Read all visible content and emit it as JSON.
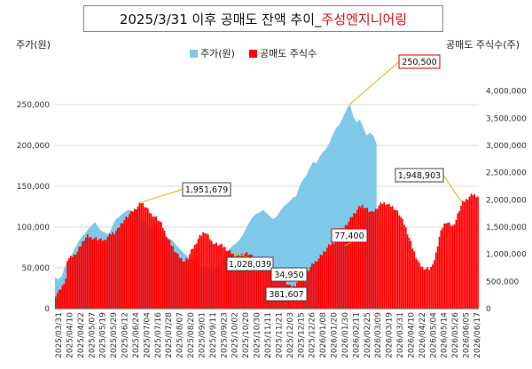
{
  "title": {
    "main": "2025/3/31 이후 공매도 잔액 추이_",
    "accent": "주성엔지니어링"
  },
  "chart_data": {
    "type": "bar+area",
    "ylabel_left": "주가(원)",
    "ylabel_right": "공매도 주식수(주)",
    "ylim_left": [
      0,
      300000
    ],
    "ylim_right": [
      0,
      4500000
    ],
    "yticks_left": [
      "0",
      "50,000",
      "100,000",
      "150,000",
      "200,000",
      "250,000"
    ],
    "yticks_right": [
      "0",
      "500,000",
      "1,000,000",
      "1,500,000",
      "2,000,000",
      "2,500,000",
      "3,000,000",
      "3,500,000",
      "4,000,000"
    ],
    "x_ticks": [
      "2025/03/31",
      "2025/04/10",
      "2025/04/22",
      "2025/05/07",
      "2025/05/19",
      "2025/05/29",
      "2025/06/12",
      "2025/06/24",
      "2025/07/04",
      "2025/07/16",
      "2025/07/28",
      "2025/08/07",
      "2025/08/20",
      "2025/09/01",
      "2025/09/11",
      "2025/09/23",
      "2025/10/02",
      "2025/10/20",
      "2025/10/30",
      "2025/11/11",
      "2025/11/21",
      "2025/12/03",
      "2025/12/15",
      "2025/12/26",
      "2026/01/08",
      "2026/01/20",
      "2026/01/30",
      "2026/02/11",
      "2026/02/25",
      "2026/03/09",
      "2026/03/19",
      "2026/03/31",
      "2026/04/10",
      "2026/04/22",
      "2026/05/04",
      "2026/05/14",
      "2026/05/26",
      "2026/06/05",
      "2026/06/17"
    ],
    "legend": [
      {
        "name": "주가(원)",
        "color": "#7ec8e8"
      },
      {
        "name": "공매도 주식수",
        "color": "#ff0000"
      }
    ],
    "series": [
      {
        "name": "주가(원)",
        "color": "#7ec8e8",
        "axis": "left",
        "points": [
          [
            0,
            38000
          ],
          [
            4,
            36000
          ],
          [
            8,
            40000
          ],
          [
            12,
            52000
          ],
          [
            16,
            60000
          ],
          [
            20,
            66000
          ],
          [
            24,
            74000
          ],
          [
            28,
            82000
          ],
          [
            32,
            88000
          ],
          [
            36,
            92000
          ],
          [
            40,
            98000
          ],
          [
            44,
            102000
          ],
          [
            48,
            106000
          ],
          [
            52,
            99000
          ],
          [
            56,
            95000
          ],
          [
            60,
            93000
          ],
          [
            64,
            90000
          ],
          [
            68,
            100000
          ],
          [
            72,
            109000
          ],
          [
            76,
            112000
          ],
          [
            80,
            116000
          ],
          [
            84,
            119000
          ],
          [
            88,
            121000
          ],
          [
            92,
            120000
          ],
          [
            96,
            118000
          ],
          [
            100,
            113000
          ],
          [
            104,
            109000
          ],
          [
            108,
            106000
          ],
          [
            112,
            102000
          ],
          [
            116,
            98000
          ],
          [
            120,
            99000
          ],
          [
            124,
            96000
          ],
          [
            128,
            92000
          ],
          [
            132,
            89000
          ],
          [
            136,
            86000
          ],
          [
            140,
            84000
          ],
          [
            144,
            79000
          ],
          [
            148,
            74000
          ],
          [
            152,
            70000
          ],
          [
            156,
            66000
          ],
          [
            160,
            63000
          ],
          [
            164,
            60000
          ],
          [
            168,
            57000
          ],
          [
            172,
            55000
          ],
          [
            176,
            52000
          ],
          [
            180,
            50000
          ],
          [
            184,
            48000
          ],
          [
            188,
            46000
          ],
          [
            192,
            50000
          ],
          [
            196,
            54000
          ],
          [
            200,
            61000
          ],
          [
            204,
            67000
          ],
          [
            208,
            73000
          ],
          [
            212,
            77000
          ],
          [
            216,
            80000
          ],
          [
            220,
            84000
          ],
          [
            224,
            90000
          ],
          [
            228,
            98000
          ],
          [
            232,
            106000
          ],
          [
            236,
            112000
          ],
          [
            240,
            116000
          ],
          [
            244,
            118000
          ],
          [
            248,
            121000
          ],
          [
            252,
            118000
          ],
          [
            256,
            114000
          ],
          [
            260,
            110000
          ],
          [
            264,
            112000
          ],
          [
            268,
            118000
          ],
          [
            272,
            124000
          ],
          [
            276,
            128000
          ],
          [
            280,
            131000
          ],
          [
            284,
            136000
          ],
          [
            288,
            138000
          ],
          [
            292,
            150000
          ],
          [
            296,
            158000
          ],
          [
            300,
            163000
          ],
          [
            304,
            172000
          ],
          [
            308,
            180000
          ],
          [
            312,
            178000
          ],
          [
            316,
            186000
          ],
          [
            320,
            192000
          ],
          [
            324,
            196000
          ],
          [
            328,
            204000
          ],
          [
            332,
            214000
          ],
          [
            336,
            222000
          ],
          [
            340,
            226000
          ],
          [
            344,
            235000
          ],
          [
            348,
            244000
          ],
          [
            352,
            250500
          ],
          [
            356,
            236000
          ],
          [
            360,
            228000
          ],
          [
            364,
            232000
          ],
          [
            368,
            222000
          ],
          [
            372,
            212000
          ],
          [
            376,
            216000
          ],
          [
            380,
            212000
          ],
          [
            384,
            202000
          ]
        ]
      },
      {
        "name": "공매도 주식수",
        "color": "#ff0000",
        "axis": "right",
        "points": [
          [
            0,
            250000
          ],
          [
            4,
            320000
          ],
          [
            8,
            420000
          ],
          [
            12,
            560000
          ],
          [
            14,
            900000
          ],
          [
            18,
            940000
          ],
          [
            22,
            980000
          ],
          [
            26,
            1050000
          ],
          [
            30,
            1160000
          ],
          [
            34,
            1280000
          ],
          [
            38,
            1340000
          ],
          [
            42,
            1310000
          ],
          [
            46,
            1300000
          ],
          [
            50,
            1280000
          ],
          [
            54,
            1260000
          ],
          [
            58,
            1250000
          ],
          [
            62,
            1320000
          ],
          [
            66,
            1380000
          ],
          [
            70,
            1400000
          ],
          [
            74,
            1460000
          ],
          [
            78,
            1560000
          ],
          [
            82,
            1640000
          ],
          [
            86,
            1700000
          ],
          [
            90,
            1760000
          ],
          [
            94,
            1820000
          ],
          [
            98,
            1880000
          ],
          [
            102,
            1951679
          ],
          [
            106,
            1900000
          ],
          [
            110,
            1820000
          ],
          [
            114,
            1740000
          ],
          [
            118,
            1700000
          ],
          [
            122,
            1640000
          ],
          [
            126,
            1560000
          ],
          [
            130,
            1420000
          ],
          [
            134,
            1280000
          ],
          [
            138,
            1180000
          ],
          [
            142,
            1080000
          ],
          [
            146,
            980000
          ],
          [
            150,
            920000
          ],
          [
            154,
            880000
          ],
          [
            158,
            930000
          ],
          [
            162,
            1060000
          ],
          [
            166,
            1160000
          ],
          [
            170,
            1280000
          ],
          [
            174,
            1360000
          ],
          [
            178,
            1420000
          ],
          [
            182,
            1340000
          ],
          [
            186,
            1240000
          ],
          [
            190,
            1200000
          ],
          [
            194,
            1180000
          ],
          [
            198,
            1160000
          ],
          [
            202,
            1120000
          ],
          [
            206,
            1060000
          ],
          [
            210,
            1028039
          ],
          [
            214,
            980000
          ],
          [
            218,
            960000
          ],
          [
            222,
            1000000
          ],
          [
            226,
            1020000
          ],
          [
            230,
            1010000
          ],
          [
            234,
            960000
          ],
          [
            238,
            920000
          ],
          [
            242,
            880000
          ],
          [
            246,
            880000
          ],
          [
            250,
            860000
          ],
          [
            254,
            840000
          ],
          [
            258,
            800000
          ],
          [
            262,
            760000
          ],
          [
            266,
            700000
          ],
          [
            270,
            600000
          ],
          [
            274,
            500000
          ],
          [
            278,
            440000
          ],
          [
            282,
            381607
          ],
          [
            286,
            440000
          ],
          [
            290,
            520000
          ],
          [
            294,
            560000
          ],
          [
            298,
            620000
          ],
          [
            302,
            720000
          ],
          [
            306,
            800000
          ],
          [
            310,
            860000
          ],
          [
            314,
            920000
          ],
          [
            318,
            1000000
          ],
          [
            322,
            1080000
          ],
          [
            326,
            1160000
          ],
          [
            330,
            1200000
          ],
          [
            334,
            1260000
          ],
          [
            338,
            1330000
          ],
          [
            342,
            1450000
          ],
          [
            346,
            1520000
          ],
          [
            350,
            1600000
          ],
          [
            354,
            1700000
          ],
          [
            358,
            1780000
          ],
          [
            362,
            1860000
          ],
          [
            366,
            1900000
          ],
          [
            370,
            1860000
          ],
          [
            374,
            1800000
          ],
          [
            378,
            1760000
          ],
          [
            382,
            1820000
          ],
          [
            386,
            1900000
          ],
          [
            390,
            1940000
          ],
          [
            394,
            1940000
          ],
          [
            398,
            1900000
          ],
          [
            402,
            1880000
          ],
          [
            406,
            1820000
          ],
          [
            410,
            1740000
          ],
          [
            414,
            1620000
          ],
          [
            418,
            1480000
          ],
          [
            422,
            1300000
          ],
          [
            426,
            1120000
          ],
          [
            430,
            960000
          ],
          [
            434,
            820000
          ],
          [
            438,
            760000
          ],
          [
            442,
            740000
          ],
          [
            446,
            740000
          ],
          [
            450,
            780000
          ],
          [
            454,
            1020000
          ],
          [
            458,
            1320000
          ],
          [
            462,
            1500000
          ],
          [
            466,
            1600000
          ],
          [
            470,
            1560000
          ],
          [
            474,
            1520000
          ],
          [
            478,
            1640000
          ],
          [
            482,
            1820000
          ],
          [
            486,
            1948903
          ],
          [
            490,
            2000000
          ],
          [
            494,
            2060000
          ],
          [
            498,
            2100000
          ],
          [
            502,
            2080000
          ],
          [
            506,
            2040000
          ]
        ]
      }
    ],
    "annotations": [
      {
        "text": "1,951,679",
        "x": 102,
        "y": 1951679,
        "axis": "right"
      },
      {
        "text": "1,028,039",
        "x": 210,
        "y": 1028039,
        "axis": "right"
      },
      {
        "text": "34,950",
        "x": 274,
        "y": 34950,
        "axis": "left"
      },
      {
        "text": "381,607",
        "x": 282,
        "y": 381607,
        "axis": "right"
      },
      {
        "text": "77,400",
        "x": 346,
        "y": 77400,
        "axis": "left"
      },
      {
        "text": "1,948,903",
        "x": 486,
        "y": 1948903,
        "axis": "right"
      },
      {
        "text": "250,500",
        "x": 352,
        "y": 250500,
        "axis": "left"
      }
    ]
  }
}
